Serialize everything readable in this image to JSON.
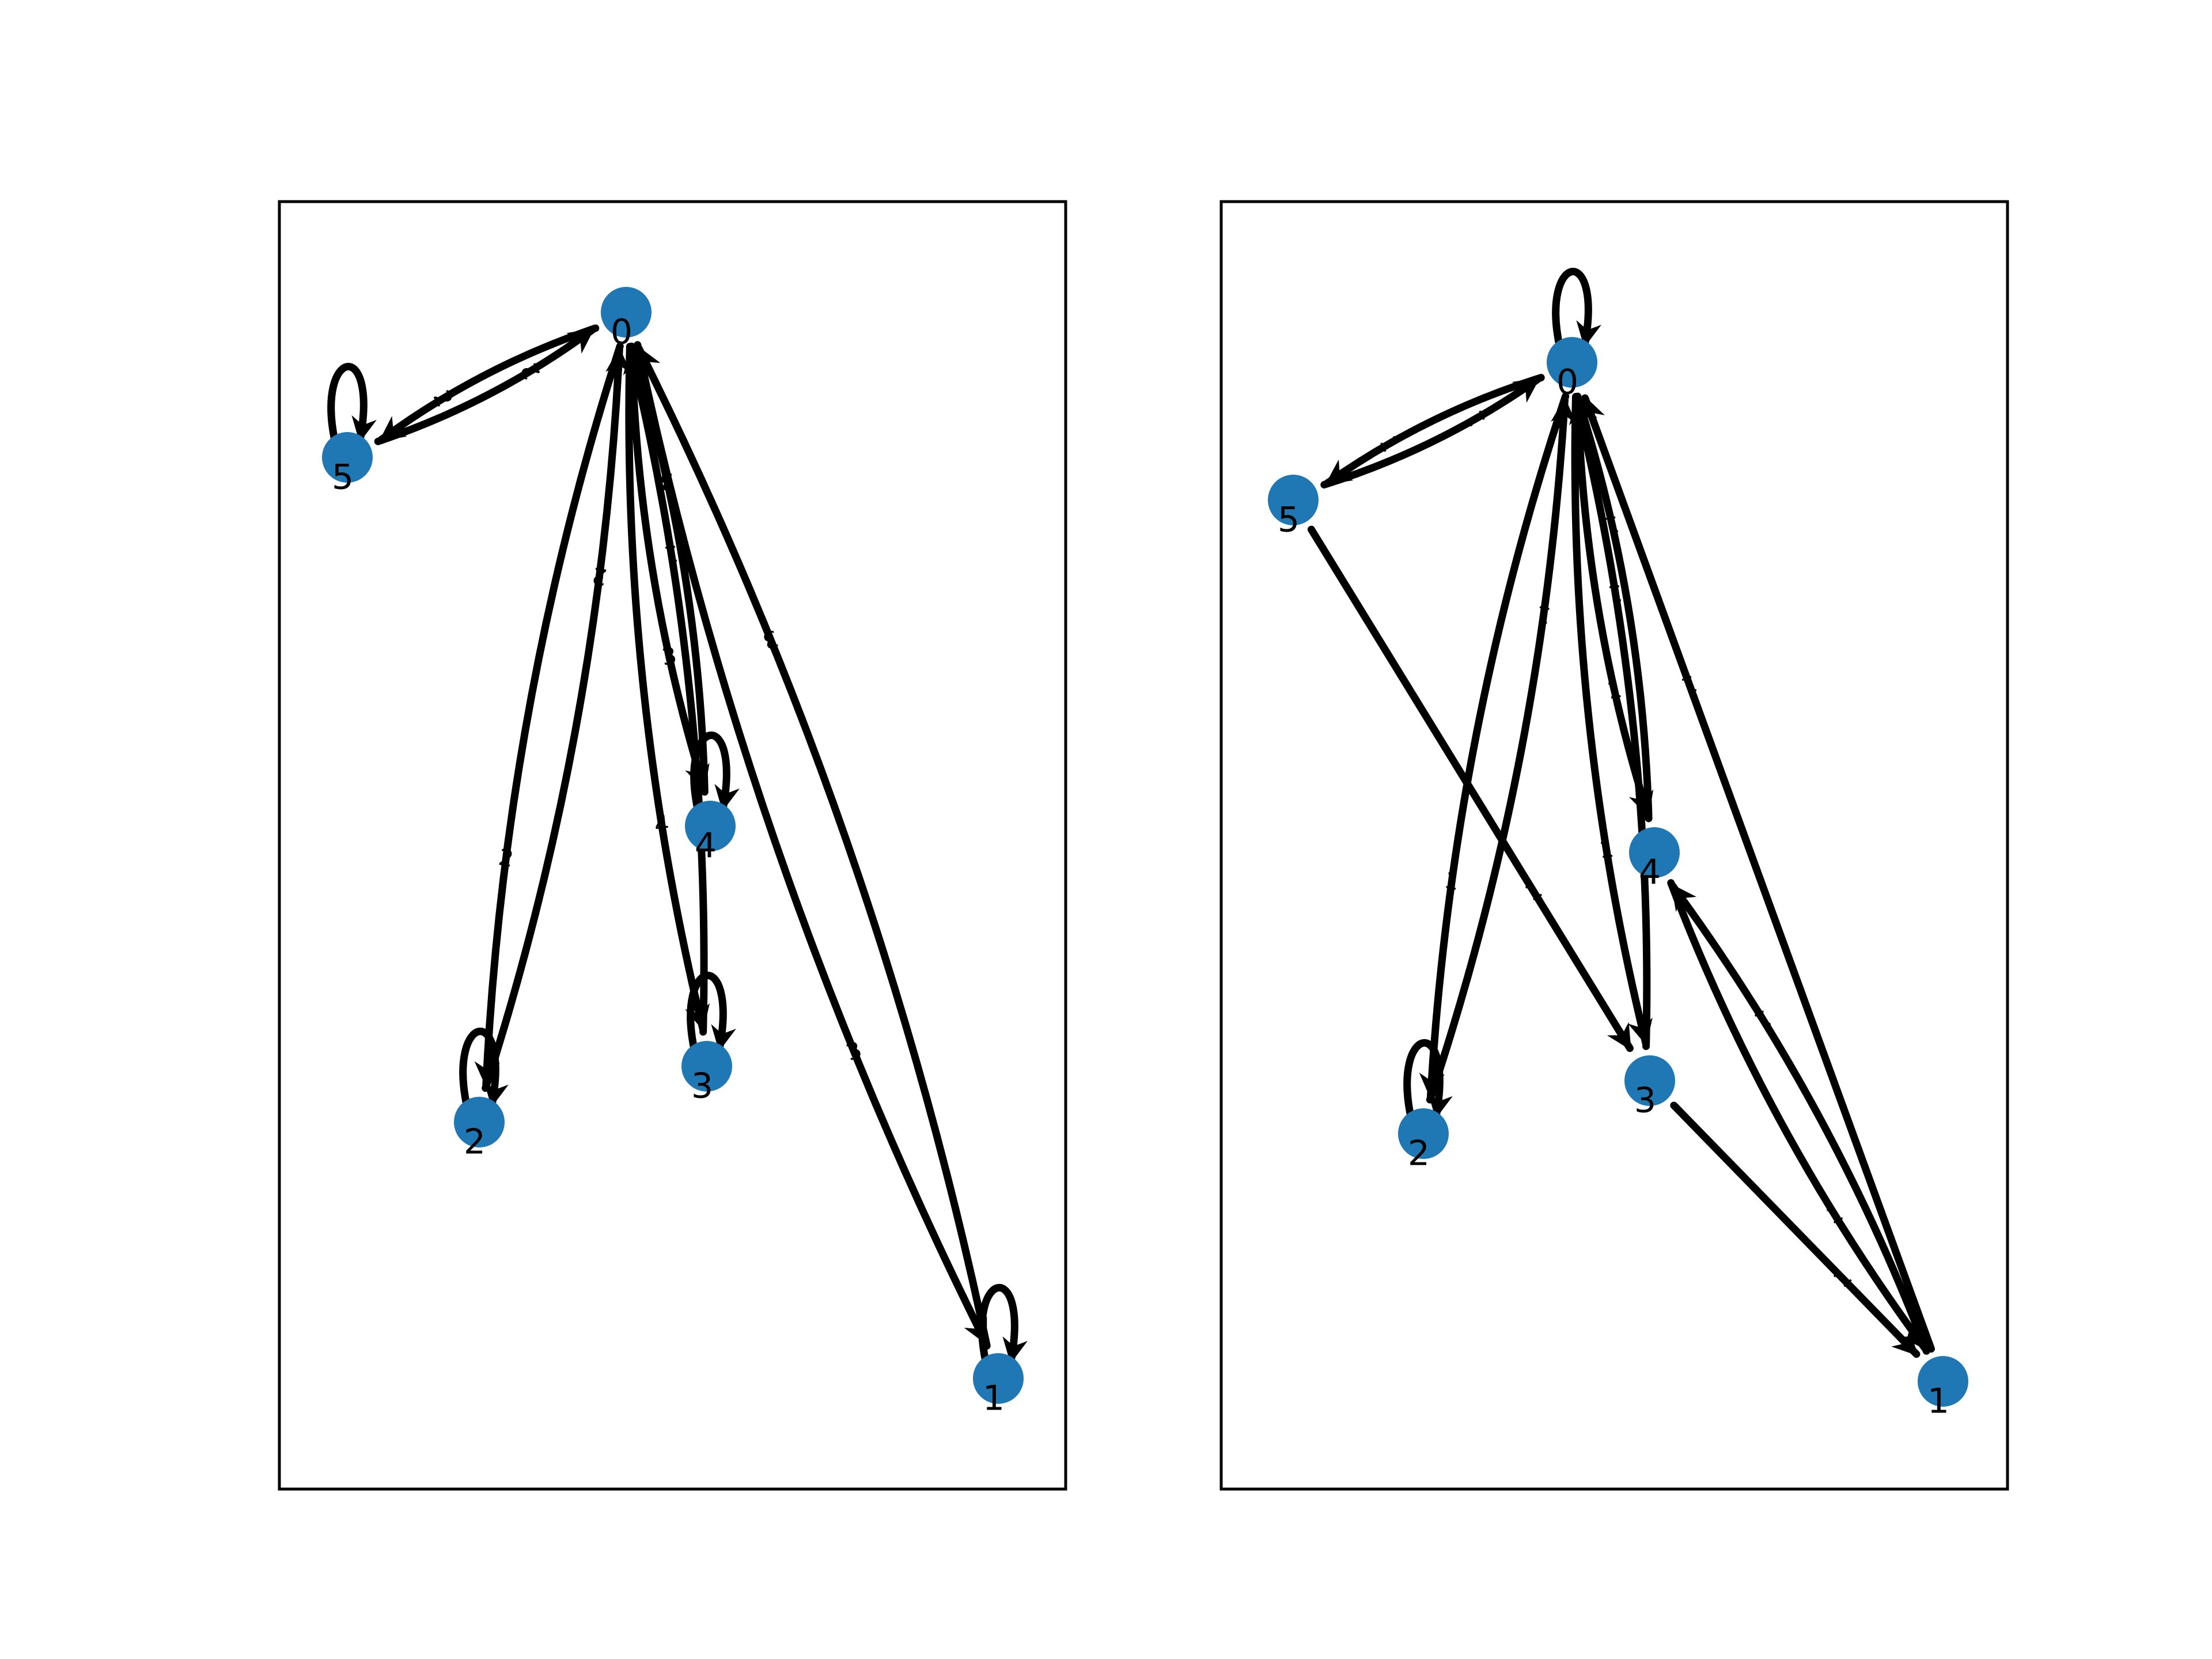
{
  "colors": {
    "node": "#1f77b4",
    "edge": "#000000",
    "background": "#ffffff"
  },
  "graphs": [
    {
      "nodes": [
        "0",
        "1",
        "2",
        "3",
        "4",
        "5"
      ],
      "edges": [
        {
          "from": "5",
          "to": "5",
          "label": ""
        },
        {
          "from": "0",
          "to": "5",
          "label": "2"
        },
        {
          "from": "5",
          "to": "0",
          "label": "2"
        },
        {
          "from": "2",
          "to": "0",
          "label": "2"
        },
        {
          "from": "0",
          "to": "2",
          "label": "2"
        },
        {
          "from": "2",
          "to": "2",
          "label": ""
        },
        {
          "from": "4",
          "to": "0",
          "label": "3"
        },
        {
          "from": "0",
          "to": "4",
          "label": "3"
        },
        {
          "from": "4",
          "to": "4",
          "label": ""
        },
        {
          "from": "3",
          "to": "0",
          "label": "1"
        },
        {
          "from": "0",
          "to": "3",
          "label": "4"
        },
        {
          "from": "3",
          "to": "3",
          "label": ""
        },
        {
          "from": "1",
          "to": "0",
          "label": "3"
        },
        {
          "from": "0",
          "to": "1",
          "label": "3"
        },
        {
          "from": "1",
          "to": "1",
          "label": ""
        }
      ]
    },
    {
      "nodes": [
        "0",
        "1",
        "2",
        "3",
        "4",
        "5"
      ],
      "edges": [
        {
          "from": "0",
          "to": "0",
          "label": ""
        },
        {
          "from": "0",
          "to": "5",
          "label": "1"
        },
        {
          "from": "5",
          "to": "0",
          "label": "1"
        },
        {
          "from": "5",
          "to": "3",
          "label": "1"
        },
        {
          "from": "2",
          "to": "0",
          "label": "1"
        },
        {
          "from": "0",
          "to": "2",
          "label": "1"
        },
        {
          "from": "2",
          "to": "2",
          "label": ""
        },
        {
          "from": "0",
          "to": "4",
          "label": "1"
        },
        {
          "from": "4",
          "to": "0",
          "label": "1"
        },
        {
          "from": "0",
          "to": "3",
          "label": "1"
        },
        {
          "from": "3",
          "to": "0",
          "label": "1"
        },
        {
          "from": "1",
          "to": "0",
          "label": "1"
        },
        {
          "from": "3",
          "to": "1",
          "label": "1"
        },
        {
          "from": "1",
          "to": "4",
          "label": "1"
        },
        {
          "from": "4",
          "to": "1",
          "label": "1"
        }
      ]
    }
  ]
}
